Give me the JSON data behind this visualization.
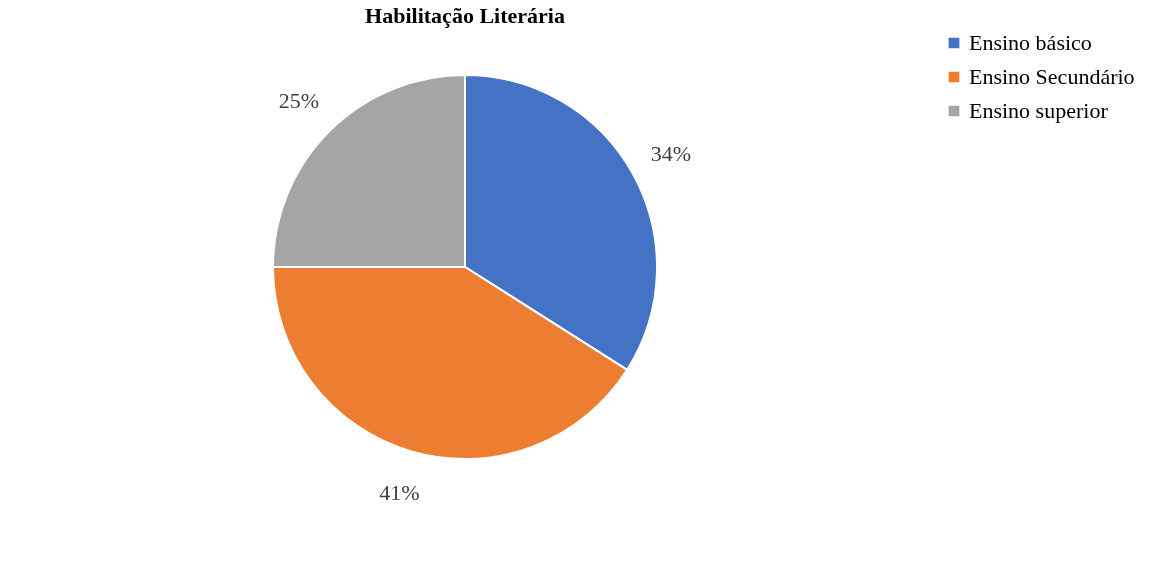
{
  "chart_data": {
    "type": "pie",
    "title": "Habilitação Literária",
    "categories": [
      "Ensino básico",
      "Ensino Secundário",
      "Ensino superior"
    ],
    "values": [
      34,
      41,
      25
    ],
    "colors": [
      "#4472c4",
      "#ed7d31",
      "#a5a5a5"
    ],
    "value_labels": [
      "34%",
      "41%",
      "25%"
    ],
    "legend": "right"
  }
}
